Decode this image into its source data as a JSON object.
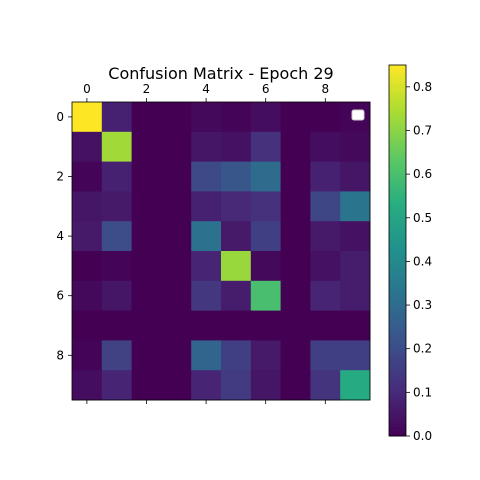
{
  "chart_data": {
    "type": "heatmap",
    "title": "Confusion Matrix - Epoch 29",
    "xlabel": "",
    "ylabel": "",
    "x_tick_labels": [
      "0",
      "2",
      "4",
      "6",
      "8"
    ],
    "y_tick_labels": [
      "0",
      "2",
      "4",
      "6",
      "8"
    ],
    "colormap": "viridis",
    "color_range": [
      0.0,
      0.85
    ],
    "colorbar_ticks": [
      "0.0",
      "0.1",
      "0.2",
      "0.3",
      "0.4",
      "0.5",
      "0.6",
      "0.7",
      "0.8"
    ],
    "legend_placement": "upper-right",
    "grid": false,
    "values": [
      [
        0.85,
        0.08,
        0.0,
        0.0,
        0.02,
        0.01,
        0.03,
        0.0,
        0.0,
        0.01
      ],
      [
        0.04,
        0.73,
        0.0,
        0.0,
        0.05,
        0.04,
        0.12,
        0.0,
        0.03,
        0.02
      ],
      [
        0.01,
        0.08,
        0.0,
        0.0,
        0.19,
        0.23,
        0.3,
        0.0,
        0.08,
        0.05
      ],
      [
        0.05,
        0.06,
        0.0,
        0.0,
        0.08,
        0.1,
        0.12,
        0.0,
        0.18,
        0.33
      ],
      [
        0.06,
        0.2,
        0.0,
        0.0,
        0.32,
        0.06,
        0.16,
        0.0,
        0.06,
        0.04
      ],
      [
        0.0,
        0.01,
        0.0,
        0.0,
        0.09,
        0.72,
        0.02,
        0.0,
        0.04,
        0.07
      ],
      [
        0.02,
        0.05,
        0.0,
        0.0,
        0.14,
        0.07,
        0.6,
        0.0,
        0.09,
        0.07
      ],
      [
        0.0,
        0.0,
        0.0,
        0.0,
        0.0,
        0.0,
        0.0,
        0.0,
        0.0,
        0.0
      ],
      [
        0.01,
        0.17,
        0.0,
        0.0,
        0.28,
        0.16,
        0.06,
        0.0,
        0.16,
        0.16
      ],
      [
        0.03,
        0.09,
        0.0,
        0.0,
        0.09,
        0.15,
        0.05,
        0.0,
        0.13,
        0.52
      ]
    ]
  }
}
